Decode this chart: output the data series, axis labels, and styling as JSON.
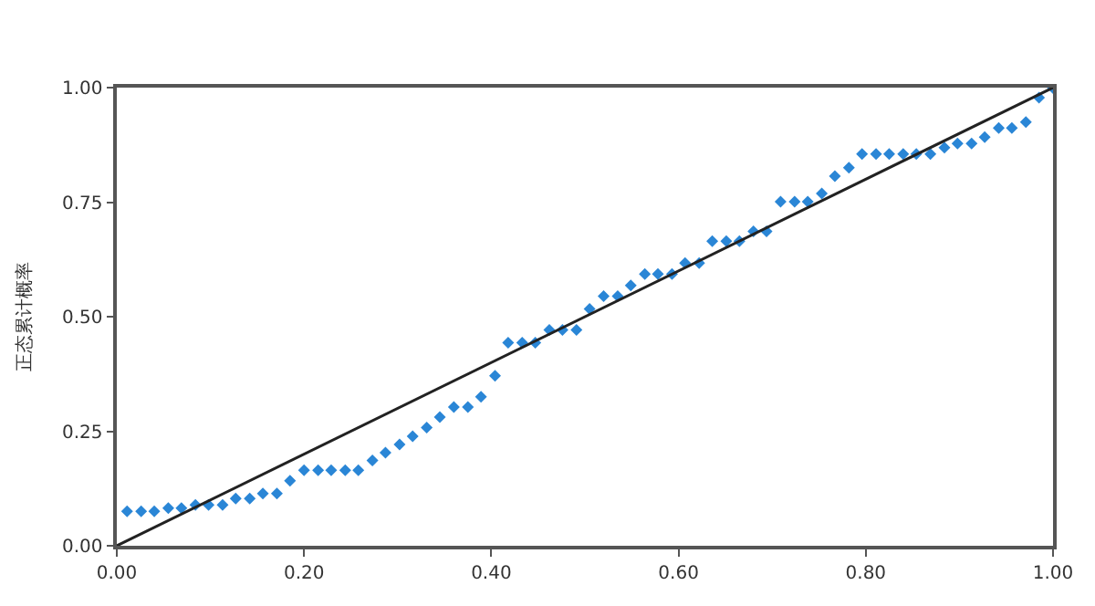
{
  "chart_data": {
    "type": "scatter",
    "ylabel": "正态累计概率",
    "xlim": [
      0,
      1
    ],
    "ylim": [
      0,
      1
    ],
    "xticks": [
      {
        "value": 0,
        "label": "0.00"
      },
      {
        "value": 0.2,
        "label": "0.20"
      },
      {
        "value": 0.4,
        "label": "0.40"
      },
      {
        "value": 0.6,
        "label": "0.60"
      },
      {
        "value": 0.8,
        "label": "0.80"
      },
      {
        "value": 1,
        "label": "1.00"
      }
    ],
    "yticks": [
      {
        "value": 0,
        "label": "0.00"
      },
      {
        "value": 0.25,
        "label": "0.25"
      },
      {
        "value": 0.5,
        "label": "0.50"
      },
      {
        "value": 0.75,
        "label": "0.75"
      },
      {
        "value": 1,
        "label": "1.00"
      }
    ],
    "series": [
      {
        "marker": "diamond",
        "color": "#2a86d6",
        "x": [
          0.011,
          0.026,
          0.04,
          0.055,
          0.069,
          0.084,
          0.098,
          0.113,
          0.127,
          0.142,
          0.156,
          0.171,
          0.185,
          0.2,
          0.215,
          0.229,
          0.244,
          0.258,
          0.273,
          0.287,
          0.302,
          0.316,
          0.331,
          0.345,
          0.36,
          0.375,
          0.389,
          0.404,
          0.418,
          0.433,
          0.447,
          0.462,
          0.476,
          0.491,
          0.505,
          0.52,
          0.535,
          0.549,
          0.564,
          0.578,
          0.593,
          0.607,
          0.622,
          0.636,
          0.651,
          0.665,
          0.68,
          0.694,
          0.709,
          0.724,
          0.738,
          0.753,
          0.767,
          0.782,
          0.796,
          0.811,
          0.825,
          0.84,
          0.854,
          0.869,
          0.884,
          0.898,
          0.913,
          0.927,
          0.942,
          0.956,
          0.971,
          0.985,
          1.0
        ],
        "values": [
          0.075,
          0.075,
          0.075,
          0.082,
          0.082,
          0.089,
          0.089,
          0.089,
          0.103,
          0.103,
          0.114,
          0.114,
          0.142,
          0.165,
          0.165,
          0.165,
          0.165,
          0.165,
          0.186,
          0.203,
          0.221,
          0.239,
          0.258,
          0.281,
          0.303,
          0.303,
          0.325,
          0.371,
          0.443,
          0.443,
          0.443,
          0.471,
          0.471,
          0.471,
          0.517,
          0.545,
          0.545,
          0.568,
          0.593,
          0.593,
          0.593,
          0.617,
          0.617,
          0.665,
          0.665,
          0.665,
          0.686,
          0.686,
          0.751,
          0.751,
          0.751,
          0.769,
          0.807,
          0.825,
          0.855,
          0.855,
          0.855,
          0.855,
          0.855,
          0.855,
          0.869,
          0.878,
          0.878,
          0.892,
          0.912,
          0.912,
          0.925,
          0.978,
          0.999
        ]
      },
      {
        "type": "line",
        "color": "#222222",
        "line_style": "solid",
        "x": [
          0,
          1
        ],
        "values": [
          0,
          1
        ]
      }
    ]
  }
}
